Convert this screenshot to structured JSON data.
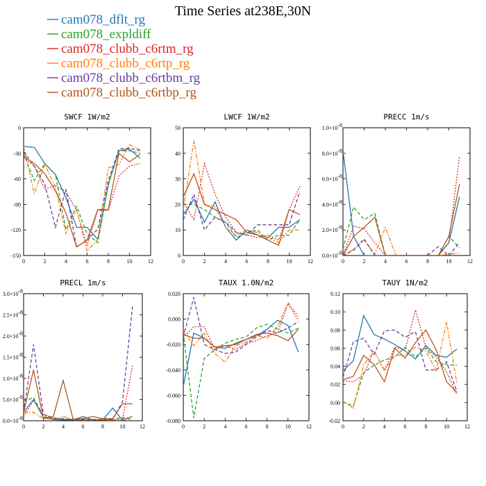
{
  "chart_data": {
    "type": "line",
    "title": "Time Series at238E,30N",
    "legend": {
      "placement": "top-left",
      "entries": [
        {
          "name": "cam078_dflt_rg",
          "color": "#1f77b4",
          "dash": "solid"
        },
        {
          "name": "cam078_expldiff",
          "color": "#2ca02c",
          "dash": "dashed"
        },
        {
          "name": "cam078_clubb_c6rtm_rg",
          "color": "#d62728",
          "dash": "dotted"
        },
        {
          "name": "cam078_clubb_c6rtp_rg",
          "color": "#ff7f0e",
          "dash": "dashdot"
        },
        {
          "name": "cam078_clubb_c6rtbm_rg",
          "color": "#6a3d9a",
          "dash": "dashed"
        },
        {
          "name": "cam078_clubb_c6rtbp_rg",
          "color": "#b5541b",
          "dash": "solid"
        }
      ]
    },
    "x": [
      0,
      1,
      2,
      3,
      4,
      5,
      6,
      7,
      8,
      9,
      10,
      11
    ],
    "panels": [
      {
        "title": "SWCF   1W/m2",
        "xlim": [
          0,
          12
        ],
        "ylim": [
          -150,
          0
        ],
        "xticks": [
          0,
          2,
          4,
          6,
          8,
          10,
          12
        ],
        "yticks": [
          {
            "v": 0,
            "label": "0"
          },
          {
            "v": -30,
            "label": "-30"
          },
          {
            "v": -60,
            "label": "-60"
          },
          {
            "v": -90,
            "label": "-90"
          },
          {
            "v": -120,
            "label": "-120"
          },
          {
            "v": -150,
            "label": "-150"
          }
        ],
        "series": [
          {
            "values": [
              -22,
              -23,
              -42,
              -55,
              -82,
              -117,
              -117,
              -131,
              -67,
              -27,
              -25,
              -36
            ]
          },
          {
            "values": [
              -30,
              -62,
              -42,
              -55,
              -120,
              -92,
              -125,
              -135,
              -67,
              -27,
              -27,
              -30
            ]
          },
          {
            "values": [
              -35,
              -45,
              -72,
              -68,
              -75,
              -97,
              -138,
              -97,
              -97,
              -57,
              -45,
              -42
            ]
          },
          {
            "values": [
              -22,
              -77,
              -43,
              -70,
              -124,
              -96,
              -145,
              -131,
              -47,
              -43,
              -20,
              -26
            ]
          },
          {
            "values": [
              -28,
              -45,
              -66,
              -117,
              -72,
              -140,
              -132,
              -119,
              -62,
              -25,
              -24,
              -27
            ]
          },
          {
            "values": [
              -34,
              -42,
              -54,
              -74,
              -100,
              -140,
              -132,
              -96,
              -96,
              -30,
              -40,
              -31
            ]
          }
        ]
      },
      {
        "title": "LWCF   1W/m2",
        "xlim": [
          0,
          12
        ],
        "ylim": [
          0,
          50
        ],
        "xticks": [
          0,
          2,
          4,
          6,
          8,
          10,
          12
        ],
        "yticks": [
          {
            "v": 0,
            "label": "0"
          },
          {
            "v": 10,
            "label": "10"
          },
          {
            "v": 20,
            "label": "20"
          },
          {
            "v": 30,
            "label": "30"
          },
          {
            "v": 40,
            "label": "40"
          },
          {
            "v": 50,
            "label": "50"
          }
        ],
        "series": [
          {
            "values": [
              16,
              22,
              13,
              21,
              11,
              6,
              10,
              8,
              7,
              11,
              11,
              14
            ]
          },
          {
            "values": [
              20,
              20,
              18,
              15,
              13,
              7,
              9,
              10,
              6,
              8,
              8,
              14
            ]
          },
          {
            "values": [
              21,
              14,
              36,
              24,
              15,
              9,
              8,
              7,
              8,
              6,
              18,
              27
            ]
          },
          {
            "values": [
              18,
              45,
              20,
              19,
              11,
              8,
              10,
              9,
              7,
              5,
              10,
              10
            ]
          },
          {
            "values": [
              14,
              24,
              10,
              15,
              13,
              9,
              8,
              12,
              12,
              12,
              12,
              25
            ]
          },
          {
            "values": [
              23,
              32,
              20,
              18,
              16,
              14,
              9,
              8,
              6,
              4,
              18,
              16
            ]
          }
        ]
      },
      {
        "title": "PRECC   1m/s",
        "xlim": [
          0,
          12
        ],
        "ylim": [
          0,
          1e-08
        ],
        "xticks": [
          0,
          2,
          4,
          6,
          8,
          10,
          12
        ],
        "yticks": [
          {
            "v": 0,
            "label": "0.0×10"
          },
          {
            "v": 2e-09,
            "label": "2.0×10"
          },
          {
            "v": 4e-09,
            "label": "4.0×10"
          },
          {
            "v": 6e-09,
            "label": "6.0×10"
          },
          {
            "v": 8e-09,
            "label": "8.0×10"
          },
          {
            "v": 1e-08,
            "label": "1.0×10"
          }
        ],
        "ytick_exp": "-8",
        "series": [
          {
            "values": [
              8.2e-09,
              1.5e-09,
              0,
              0,
              0,
              0,
              0,
              0,
              0,
              0,
              1e-09,
              4.6e-09
            ]
          },
          {
            "values": [
              5e-10,
              3.8e-09,
              2.8e-09,
              3.3e-09,
              0,
              0,
              0,
              0,
              0,
              0,
              1.5e-09,
              6e-10
            ]
          },
          {
            "values": [
              0,
              2.3e-09,
              2.1e-09,
              1e-09,
              0,
              0,
              0,
              0,
              0,
              0,
              1e-09,
              7.8e-09
            ]
          },
          {
            "values": [
              0,
              5e-10,
              1.2e-09,
              1e-10,
              2.2e-09,
              0,
              0,
              0,
              0,
              0,
              1e-10,
              2e-10
            ]
          },
          {
            "values": [
              0,
              4e-10,
              1.3e-09,
              0,
              0,
              0,
              0,
              0,
              0,
              7e-10,
              0,
              1e-09
            ]
          },
          {
            "values": [
              0,
              1.5e-09,
              2.2e-09,
              3e-09,
              0,
              0,
              0,
              0,
              0,
              0,
              1.5e-09,
              5.6e-09
            ]
          }
        ]
      },
      {
        "title": "PRECL   1m/s",
        "xlim": [
          0,
          12
        ],
        "ylim": [
          0,
          3e-08
        ],
        "xticks": [
          0,
          2,
          4,
          6,
          8,
          10,
          12
        ],
        "yticks": [
          {
            "v": 0,
            "label": "0.0×10"
          },
          {
            "v": 5e-09,
            "label": "5.0×10"
          },
          {
            "v": 1e-08,
            "label": "1.0×10"
          },
          {
            "v": 1.5e-08,
            "label": "1.5×10"
          },
          {
            "v": 2e-08,
            "label": "2.0×10"
          },
          {
            "v": 2.5e-08,
            "label": "2.5×10"
          },
          {
            "v": 3e-08,
            "label": "3.0×10"
          }
        ],
        "ytick_exp": "-8",
        "series": [
          {
            "values": [
              2e-09,
              5e-09,
              8e-10,
              3e-10,
              2e-10,
              2e-10,
              1e-09,
              2e-10,
              2e-10,
              3e-09,
              1e-10,
              1e-09
            ]
          },
          {
            "values": [
              4.5e-09,
              5.5e-09,
              1e-09,
              5e-10,
              5e-10,
              3e-10,
              3e-10,
              3e-10,
              3e-10,
              3e-10,
              8e-10,
              2e-10
            ]
          },
          {
            "values": [
              1e-09,
              4.8e-09,
              1.5e-09,
              8e-10,
              3e-10,
              2e-10,
              2e-10,
              2e-10,
              2e-10,
              2e-10,
              3e-10,
              1.3e-08
            ]
          },
          {
            "values": [
              2e-09,
              2e-09,
              5e-10,
              4e-10,
              1e-09,
              3e-10,
              2e-10,
              2e-10,
              2e-10,
              2e-10,
              5e-10,
              1e-09
            ]
          },
          {
            "values": [
              2e-09,
              1.8e-08,
              1.5e-09,
              5e-10,
              3e-10,
              3e-10,
              3e-10,
              3e-10,
              3e-10,
              3e-10,
              4.5e-09,
              2.7e-08
            ]
          },
          {
            "values": [
              2e-09,
              1.2e-08,
              5e-10,
              1e-09,
              9.5e-09,
              4e-10,
              5e-10,
              1e-09,
              5e-10,
              5e-10,
              4e-09,
              4e-09
            ]
          }
        ]
      },
      {
        "title": "TAUX   1.0N/m2",
        "xlim": [
          0,
          12
        ],
        "ylim": [
          -0.08,
          0.02
        ],
        "xticks": [
          0,
          2,
          4,
          6,
          8,
          10,
          12
        ],
        "yticks": [
          {
            "v": 0.02,
            "label": "0.020"
          },
          {
            "v": 0,
            "label": "0.000"
          },
          {
            "v": -0.02,
            "label": "-0.020"
          },
          {
            "v": -0.04,
            "label": "-0.040"
          },
          {
            "v": -0.06,
            "label": "-0.060"
          },
          {
            "v": -0.08,
            "label": "-0.080"
          }
        ],
        "series": [
          {
            "values": [
              -0.053,
              -0.011,
              -0.015,
              -0.022,
              -0.023,
              -0.019,
              -0.016,
              -0.013,
              -0.008,
              -0.001,
              -0.005,
              -0.026
            ]
          },
          {
            "values": [
              -0.011,
              -0.078,
              -0.031,
              -0.024,
              -0.019,
              -0.016,
              -0.014,
              -0.007,
              -0.004,
              -0.008,
              -0.011,
              -0.007
            ]
          },
          {
            "values": [
              -0.015,
              -0.006,
              -0.006,
              -0.024,
              -0.021,
              -0.024,
              -0.019,
              -0.017,
              -0.013,
              -0.011,
              0.012,
              -0.001
            ]
          },
          {
            "values": [
              -0.009,
              -0.021,
              -0.011,
              -0.027,
              -0.034,
              -0.021,
              -0.018,
              -0.013,
              -0.015,
              -0.006,
              0.013,
              0.002
            ]
          },
          {
            "values": [
              -0.014,
              0.017,
              -0.02,
              -0.024,
              -0.027,
              -0.026,
              -0.02,
              -0.014,
              -0.009,
              -0.011,
              -0.007,
              -0.002
            ]
          },
          {
            "values": [
              -0.012,
              -0.015,
              -0.015,
              -0.022,
              -0.021,
              -0.02,
              -0.016,
              -0.012,
              -0.011,
              -0.013,
              -0.017,
              -0.008
            ]
          }
        ]
      },
      {
        "title": "TAUY   1N/m2",
        "xlim": [
          0,
          12
        ],
        "ylim": [
          -0.02,
          0.12
        ],
        "xticks": [
          0,
          2,
          4,
          6,
          8,
          10,
          12
        ],
        "yticks": [
          {
            "v": 0.12,
            "label": "0.12"
          },
          {
            "v": 0.1,
            "label": "0.10"
          },
          {
            "v": 0.08,
            "label": "0.08"
          },
          {
            "v": 0.06,
            "label": "0.06"
          },
          {
            "v": 0.04,
            "label": "0.04"
          },
          {
            "v": 0.02,
            "label": "0.02"
          },
          {
            "v": 0,
            "label": "0.00"
          },
          {
            "v": -0.02,
            "label": "-0.02"
          }
        ],
        "series": [
          {
            "values": [
              0.035,
              0.046,
              0.096,
              0.075,
              0.07,
              0.064,
              0.057,
              0.048,
              0.063,
              0.052,
              0.05,
              0.059
            ]
          },
          {
            "values": [
              0.001,
              -0.004,
              0.033,
              0.041,
              0.047,
              0.05,
              0.061,
              0.05,
              0.06,
              0.045,
              0.042,
              0.041
            ]
          },
          {
            "values": [
              0.024,
              0.023,
              0.031,
              0.057,
              0.035,
              0.061,
              0.058,
              0.102,
              0.061,
              0.05,
              0.034,
              0.009
            ]
          },
          {
            "values": [
              0.001,
              -0.006,
              0.041,
              0.057,
              0.036,
              0.052,
              0.052,
              0.061,
              0.057,
              0.035,
              0.089,
              0.021
            ]
          },
          {
            "values": [
              0.028,
              0.067,
              0.071,
              0.053,
              0.079,
              0.08,
              0.072,
              0.078,
              0.036,
              0.036,
              0.045,
              0.012
            ]
          },
          {
            "values": [
              0.025,
              0.029,
              0.052,
              0.042,
              0.023,
              0.06,
              0.049,
              0.066,
              0.08,
              0.058,
              0.023,
              0.011
            ]
          }
        ]
      }
    ]
  }
}
